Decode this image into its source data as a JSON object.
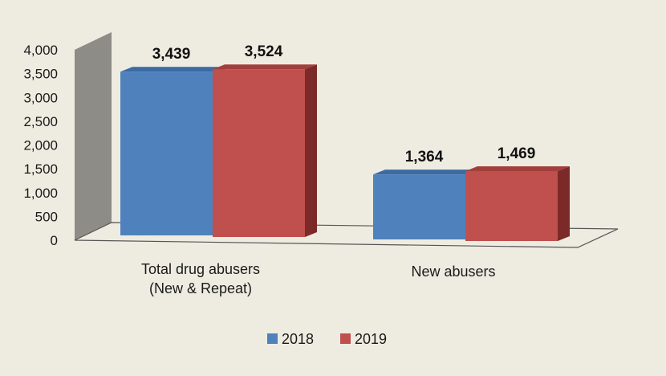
{
  "chart_data": {
    "type": "bar",
    "categories": [
      [
        "Total drug abusers",
        "(New & Repeat)"
      ],
      [
        "New abusers"
      ]
    ],
    "series": [
      {
        "name": "2018",
        "values": [
          3439,
          1364
        ],
        "labels": [
          "3,439",
          "1,364"
        ]
      },
      {
        "name": "2019",
        "values": [
          3524,
          1469
        ],
        "labels": [
          "3,524",
          "1,469"
        ]
      }
    ],
    "yticks": [
      "0",
      "500",
      "1,000",
      "1,500",
      "2,000",
      "2,500",
      "3,000",
      "3,500",
      "4,000"
    ],
    "ylim": [
      0,
      4000
    ],
    "legend_position": "bottom",
    "colors": {
      "series": [
        "#4f81bd",
        "#c0504d"
      ],
      "series_top": [
        "#3c6aa3",
        "#a23f3c"
      ],
      "series_side": [
        "#2f5688",
        "#7b2a29"
      ],
      "wall": "#8d8c86",
      "background": "#eeece1"
    }
  }
}
